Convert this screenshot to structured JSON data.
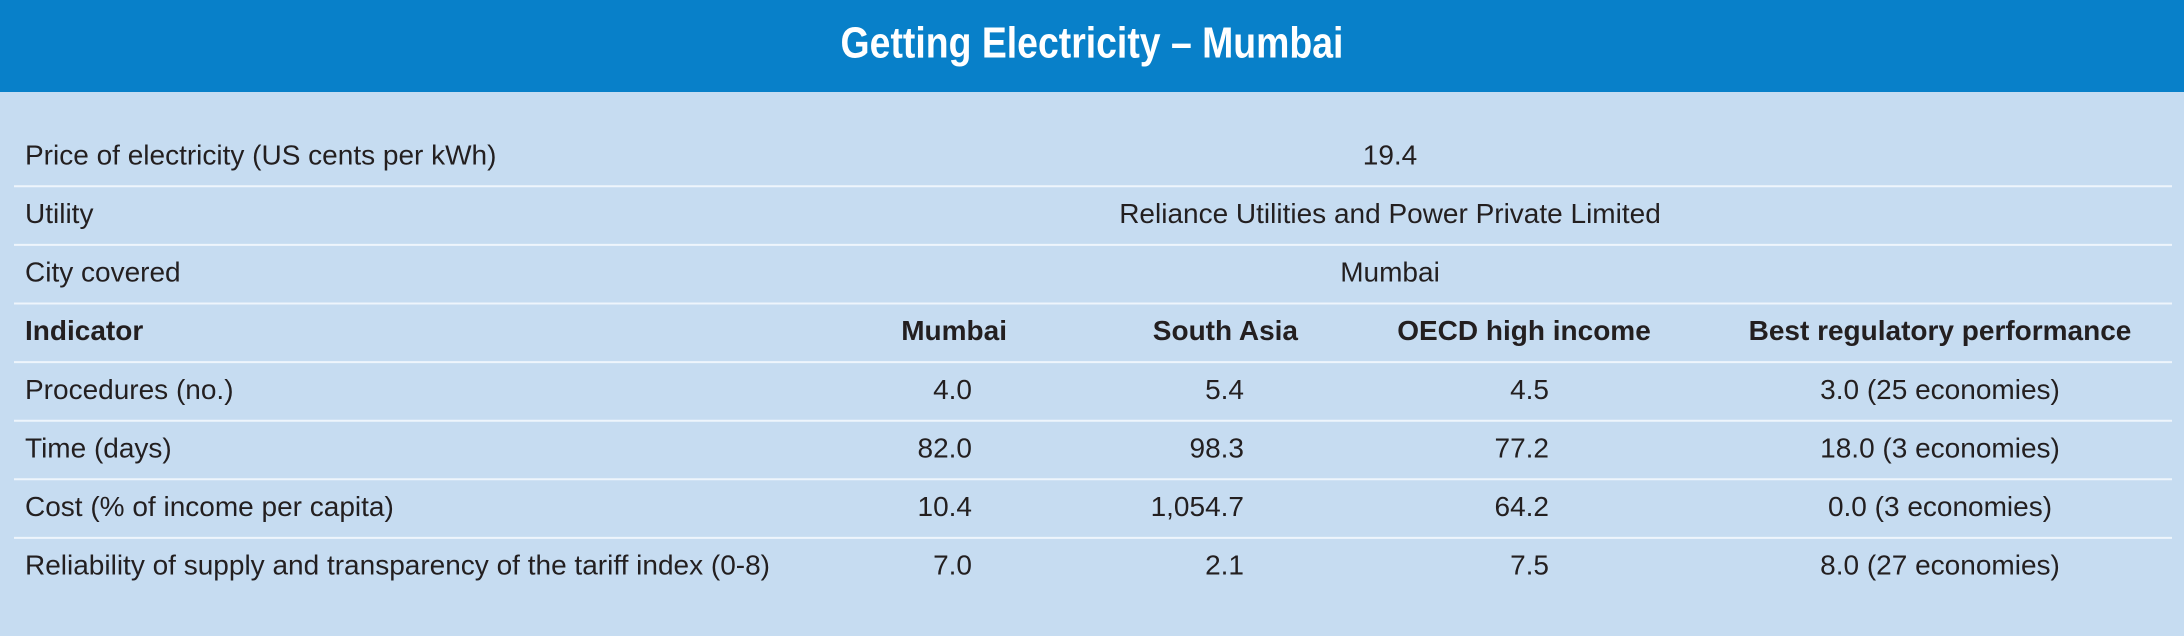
{
  "title": "Getting Electricity – Mumbai",
  "info": [
    {
      "label": "Price of electricity (US cents per kWh)",
      "value": "19.4"
    },
    {
      "label": "Utility",
      "value": "Reliance Utilities and Power Private Limited"
    },
    {
      "label": "City covered",
      "value": "Mumbai"
    }
  ],
  "table": {
    "header": [
      "Indicator",
      "Mumbai",
      "South Asia",
      "OECD high income",
      "Best regulatory performance"
    ],
    "rows": [
      [
        "Procedures (no.)",
        "4.0",
        "5.4",
        "4.5",
        "3.0 (25 economies)"
      ],
      [
        "Time (days)",
        "82.0",
        "98.3",
        "77.2",
        "18.0 (3 economies)"
      ],
      [
        "Cost (% of income per capita)",
        "10.4",
        "1,054.7",
        "64.2",
        "0.0 (3 economies)"
      ],
      [
        "Reliability of supply and transparency of the tariff index (0-8)",
        "7.0",
        "2.1",
        "7.5",
        "8.0 (27 economies)"
      ]
    ]
  }
}
